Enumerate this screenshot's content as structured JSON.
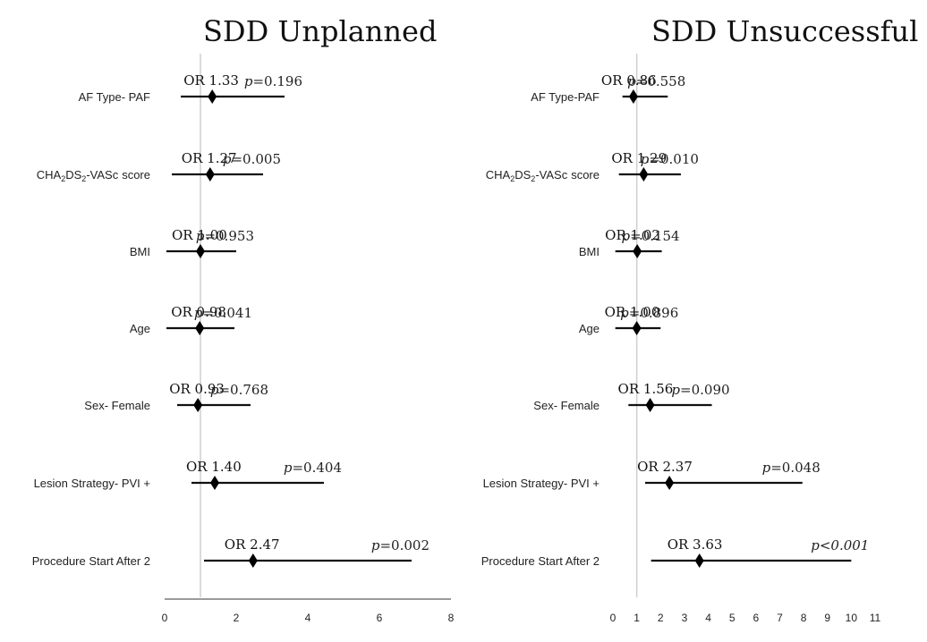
{
  "chart_data": [
    {
      "type": "forest",
      "title": "SDD Unplanned",
      "xlim": [
        0,
        8
      ],
      "xticks": [
        "0",
        "2",
        "4",
        "6",
        "8"
      ],
      "reference_line": 1,
      "rows": [
        {
          "label": "AF Type- PAF",
          "or_text": "OR 1.33",
          "p_text": "=0.196",
          "or": 1.33,
          "ci": [
            0.45,
            3.35
          ]
        },
        {
          "label": "score",
          "or_text": "OR 1.27",
          "p_text": "=0.005",
          "or": 1.27,
          "ci": [
            0.2,
            2.75
          ]
        },
        {
          "label": "BMI",
          "or_text": "OR 1.00",
          "p_text": "=0.953",
          "or": 1.0,
          "ci": [
            0.05,
            2.0
          ]
        },
        {
          "label": "Age",
          "or_text": "OR 0.98",
          "p_text": "=0.041",
          "or": 0.98,
          "ci": [
            0.05,
            1.95
          ]
        },
        {
          "label": "Sex- Female",
          "or_text": "OR 0.93",
          "p_text": "=0.768",
          "or": 0.93,
          "ci": [
            0.35,
            2.4
          ]
        },
        {
          "label": "Lesion Strategy- PVI +",
          "or_text": "OR 1.40",
          "p_text": "=0.404",
          "or": 1.4,
          "ci": [
            0.75,
            4.45
          ]
        },
        {
          "label": "Procedure Start After 2",
          "or_text": "OR 2.47",
          "p_text": "=0.002",
          "or": 2.47,
          "ci": [
            1.1,
            6.9
          ]
        }
      ]
    },
    {
      "type": "forest",
      "title": "SDD Unsuccessful",
      "xlim": [
        0,
        11
      ],
      "xticks": [
        "0",
        "1",
        "2",
        "3",
        "4",
        "5",
        "6",
        "7",
        "8",
        "9",
        "10",
        "11"
      ],
      "reference_line": 1,
      "rows": [
        {
          "label": "AF Type-PAF",
          "or_text": "OR 0.86",
          "p_text": "=0.558",
          "or": 0.86,
          "ci": [
            0.4,
            2.3
          ]
        },
        {
          "label": "score",
          "or_text": "OR 1.29",
          "p_text": "=0.010",
          "or": 1.29,
          "ci": [
            0.25,
            2.85
          ]
        },
        {
          "label": "BMI",
          "or_text": "OR 1.02",
          "p_text": "=0.154",
          "or": 1.02,
          "ci": [
            0.1,
            2.05
          ]
        },
        {
          "label": "Age",
          "or_text": "OR 1.00",
          "p_text": "=0.896",
          "or": 1.0,
          "ci": [
            0.1,
            2.0
          ]
        },
        {
          "label": "Sex- Female",
          "or_text": "OR 1.56",
          "p_text": "=0.090",
          "or": 1.56,
          "ci": [
            0.65,
            4.15
          ]
        },
        {
          "label": "Lesion Strategy- PVI +",
          "or_text": "OR 2.37",
          "p_text": "=0.048",
          "or": 2.37,
          "ci": [
            1.35,
            7.95
          ]
        },
        {
          "label": "Procedure Start After 2",
          "or_text": "OR 3.63",
          "p_text": "<0.001",
          "or": 3.63,
          "ci": [
            1.6,
            10.0
          ]
        }
      ]
    }
  ],
  "p_symbol": "p",
  "cha_label": {
    "prefix": "CHA",
    "sub1": "2",
    "mid": "DS",
    "sub2": "2",
    "suffix": "-VASc"
  }
}
